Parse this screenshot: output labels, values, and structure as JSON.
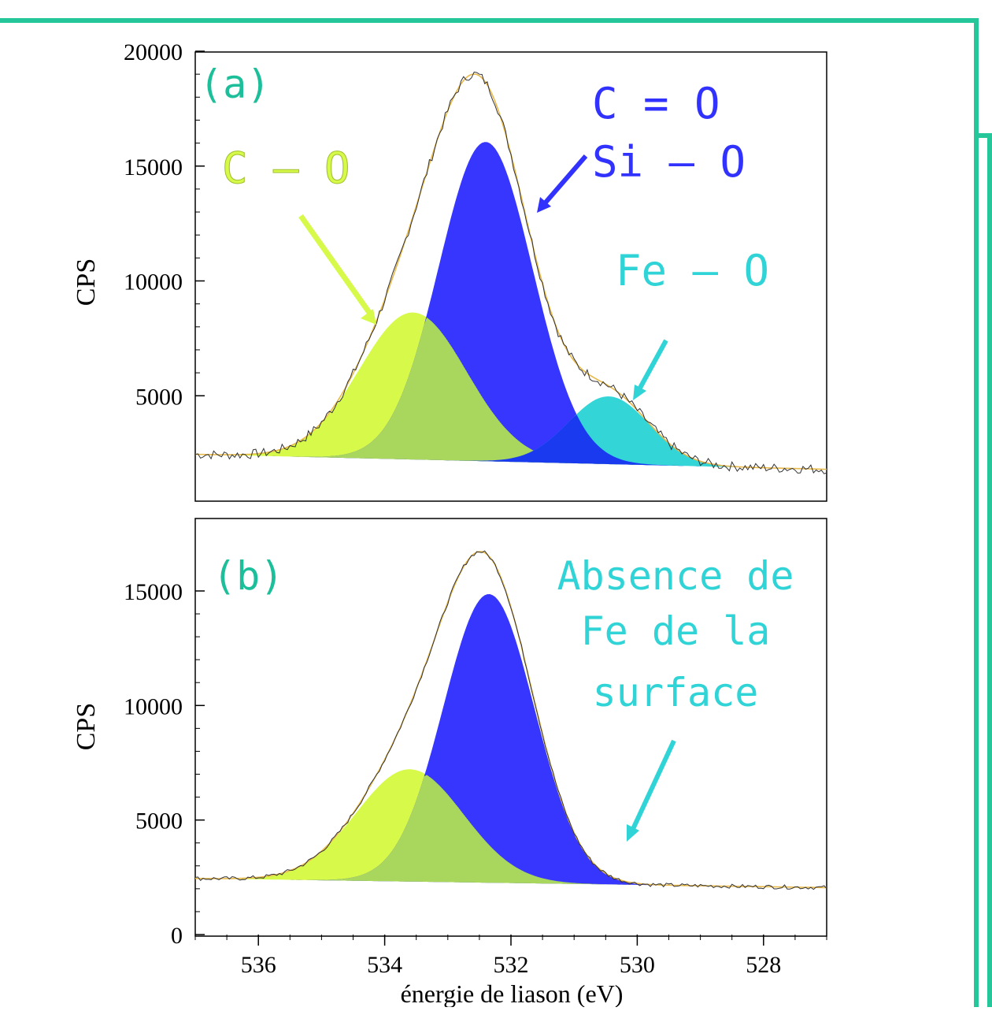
{
  "colors": {
    "frame": "#25c79a",
    "c_o": "#d6f94a",
    "c_o_overlap": "#a9d65d",
    "c_eq_o": "#3232ff",
    "fe_o": "#30d4d6",
    "label_ab": "#1cbf9a",
    "raw": "#333333",
    "envelope": "#e8b94a"
  },
  "chart_data": [
    {
      "type": "area",
      "panel_label": "(a)",
      "ylabel": "CPS",
      "xlabel": "",
      "xlim": [
        537,
        527
      ],
      "ylim": [
        0,
        20000
      ],
      "y_tick_labels": [
        "20000",
        "15000",
        "10000",
        "5000"
      ],
      "y_ticks": [
        20000,
        15000,
        10000,
        5000
      ],
      "baseline": {
        "start": 2450,
        "end": 1800
      },
      "components": [
        {
          "name": "C – O",
          "center": 533.55,
          "amplitude": 6400,
          "fwhm": 2.0
        },
        {
          "name": "C = O\nSi – O",
          "center": 532.4,
          "amplitude": 13900,
          "fwhm": 1.75
        },
        {
          "name": "Fe – O",
          "center": 530.45,
          "amplitude": 2950,
          "fwhm": 1.5
        }
      ],
      "annotations": {
        "c_o": "C – O",
        "c_eq_o_line1": "C = O",
        "c_eq_o_line2": "Si – O",
        "fe_o": "Fe – O"
      }
    },
    {
      "type": "area",
      "panel_label": "(b)",
      "ylabel": "CPS",
      "xlabel": "énergie de liason (eV)",
      "xlim": [
        537,
        527
      ],
      "ylim": [
        0,
        18000
      ],
      "x_ticks": [
        536,
        534,
        532,
        530,
        528
      ],
      "x_tick_labels": [
        "536",
        "534",
        "532",
        "530",
        "528"
      ],
      "y_tick_labels": [
        "15000",
        "10000",
        "5000",
        "0"
      ],
      "y_ticks": [
        15000,
        10000,
        5000,
        0
      ],
      "baseline": {
        "start": 2450,
        "end": 2050
      },
      "components": [
        {
          "name": "C – O",
          "center": 533.6,
          "amplitude": 4900,
          "fwhm": 2.0
        },
        {
          "name": "C = O / Si – O",
          "center": 532.35,
          "amplitude": 12600,
          "fwhm": 1.7
        }
      ],
      "annotations": {
        "line1": "Absence de",
        "line2": "Fe de la",
        "line3": "surface"
      }
    }
  ]
}
